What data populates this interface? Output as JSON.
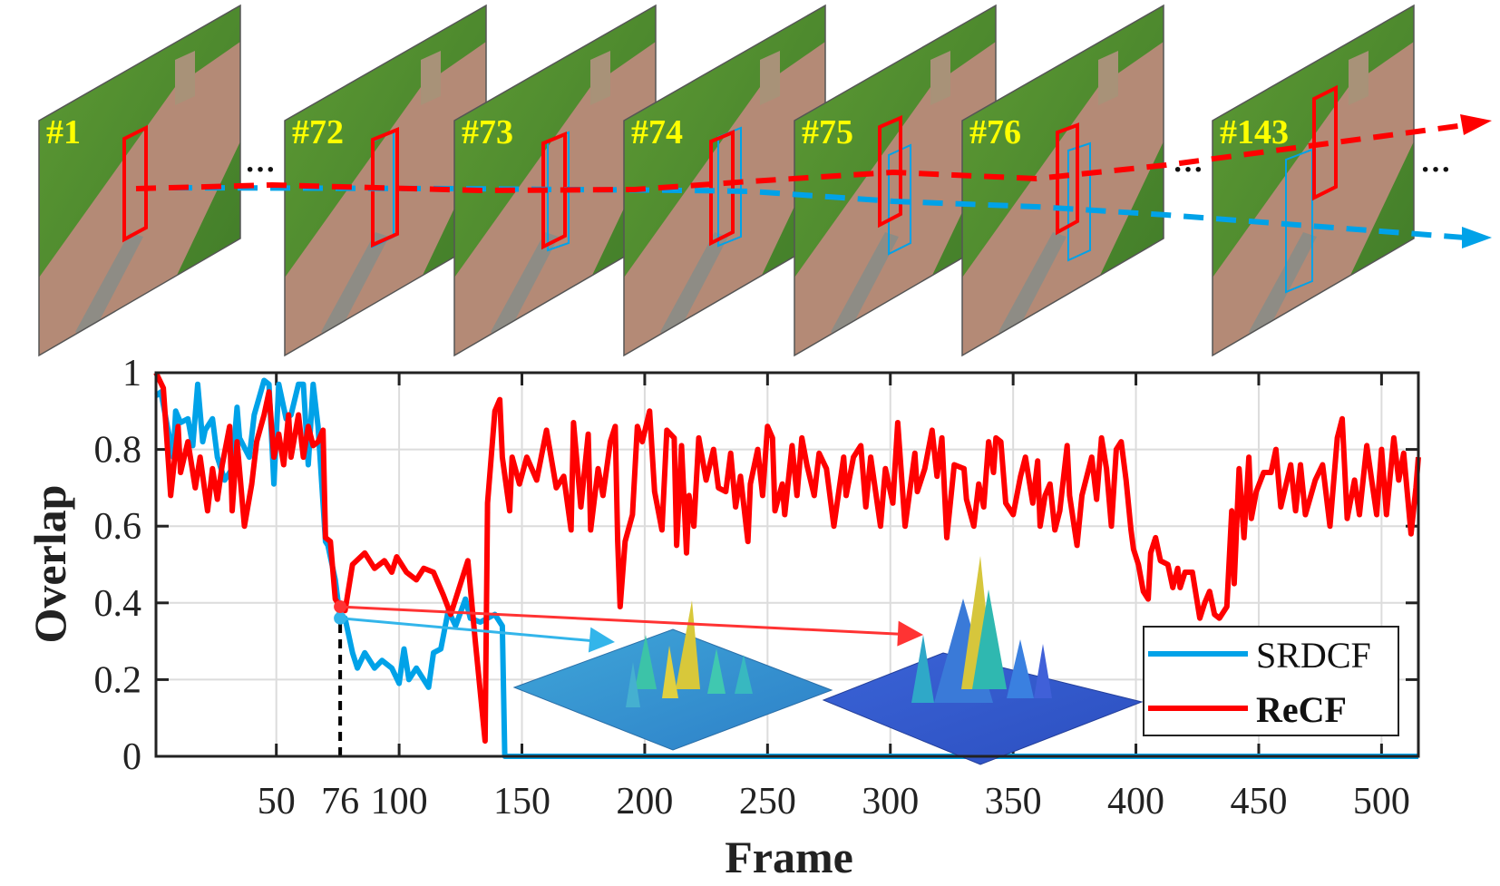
{
  "frames": [
    {
      "label": "#1"
    },
    {
      "label": "#72"
    },
    {
      "label": "#73"
    },
    {
      "label": "#74"
    },
    {
      "label": "#75"
    },
    {
      "label": "#76"
    },
    {
      "label": "#143"
    }
  ],
  "ellipsis": "···",
  "colors": {
    "srdcf": "#00a2e8",
    "recf": "#ff0000",
    "label": "#ffff00"
  },
  "chart_data": {
    "type": "line",
    "xlabel": "Frame",
    "ylabel": "Overlap",
    "xlim": [
      1,
      515
    ],
    "ylim": [
      0,
      1
    ],
    "xticks": [
      50,
      76,
      100,
      150,
      200,
      250,
      300,
      350,
      400,
      450,
      500
    ],
    "xtick_labels": [
      "50",
      "76",
      "100",
      "150",
      "200",
      "250",
      "300",
      "350",
      "400",
      "450",
      "500"
    ],
    "yticks": [
      0,
      0.2,
      0.4,
      0.6,
      0.8,
      1
    ],
    "ytick_labels": [
      "0",
      "0.2",
      "0.4",
      "0.6",
      "0.8",
      "1"
    ],
    "grid": true,
    "legend": "bottom-right",
    "highlight_frame": 76,
    "series": [
      {
        "name": "SRDCF",
        "color": "#00a2e8",
        "points": [
          [
            1,
            0.94
          ],
          [
            3,
            0.95
          ],
          [
            8,
            0.78
          ],
          [
            9,
            0.9
          ],
          [
            11,
            0.87
          ],
          [
            14,
            0.88
          ],
          [
            16,
            0.81
          ],
          [
            18,
            0.97
          ],
          [
            20,
            0.82
          ],
          [
            21,
            0.85
          ],
          [
            24,
            0.88
          ],
          [
            26,
            0.78
          ],
          [
            29,
            0.72
          ],
          [
            32,
            0.75
          ],
          [
            34,
            0.91
          ],
          [
            35,
            0.83
          ],
          [
            39,
            0.78
          ],
          [
            41,
            0.89
          ],
          [
            45,
            0.98
          ],
          [
            47,
            0.97
          ],
          [
            49,
            0.71
          ],
          [
            51,
            0.97
          ],
          [
            54,
            0.88
          ],
          [
            56,
            0.89
          ],
          [
            59,
            0.97
          ],
          [
            61,
            0.97
          ],
          [
            63,
            0.76
          ],
          [
            65,
            0.97
          ],
          [
            67,
            0.86
          ],
          [
            69,
            0.66
          ],
          [
            70,
            0.56
          ],
          [
            71,
            0.55
          ],
          [
            74,
            0.46
          ],
          [
            76,
            0.36
          ],
          [
            78,
            0.36
          ],
          [
            81,
            0.27
          ],
          [
            83,
            0.23
          ],
          [
            86,
            0.27
          ],
          [
            90,
            0.23
          ],
          [
            93,
            0.25
          ],
          [
            97,
            0.23
          ],
          [
            100,
            0.19
          ],
          [
            102,
            0.28
          ],
          [
            104,
            0.2
          ],
          [
            107,
            0.23
          ],
          [
            109,
            0.21
          ],
          [
            112,
            0.18
          ],
          [
            114,
            0.27
          ],
          [
            117,
            0.28
          ],
          [
            120,
            0.38
          ],
          [
            123,
            0.34
          ],
          [
            127,
            0.41
          ],
          [
            129,
            0.36
          ],
          [
            133,
            0.35
          ],
          [
            139,
            0.37
          ],
          [
            142,
            0.34
          ],
          [
            143,
            0
          ],
          [
            515,
            0
          ]
        ]
      },
      {
        "name": "ReCF",
        "color": "#ff0000",
        "points": [
          [
            1,
            1.0
          ],
          [
            4,
            0.96
          ],
          [
            7,
            0.68
          ],
          [
            10,
            0.86
          ],
          [
            11,
            0.74
          ],
          [
            14,
            0.82
          ],
          [
            17,
            0.7
          ],
          [
            19,
            0.78
          ],
          [
            22,
            0.64
          ],
          [
            24,
            0.75
          ],
          [
            26,
            0.67
          ],
          [
            28,
            0.76
          ],
          [
            31,
            0.86
          ],
          [
            32,
            0.64
          ],
          [
            34,
            0.82
          ],
          [
            37,
            0.6
          ],
          [
            40,
            0.71
          ],
          [
            42,
            0.82
          ],
          [
            45,
            0.89
          ],
          [
            47,
            0.95
          ],
          [
            49,
            0.78
          ],
          [
            51,
            0.84
          ],
          [
            53,
            0.76
          ],
          [
            55,
            0.89
          ],
          [
            56,
            0.78
          ],
          [
            59,
            0.89
          ],
          [
            61,
            0.78
          ],
          [
            63,
            0.86
          ],
          [
            65,
            0.81
          ],
          [
            67,
            0.82
          ],
          [
            69,
            0.85
          ],
          [
            70,
            0.57
          ],
          [
            72,
            0.56
          ],
          [
            74,
            0.41
          ],
          [
            76,
            0.39
          ],
          [
            78,
            0.38
          ],
          [
            81,
            0.5
          ],
          [
            86,
            0.53
          ],
          [
            90,
            0.49
          ],
          [
            94,
            0.51
          ],
          [
            97,
            0.48
          ],
          [
            99,
            0.52
          ],
          [
            103,
            0.48
          ],
          [
            107,
            0.46
          ],
          [
            110,
            0.49
          ],
          [
            114,
            0.48
          ],
          [
            118,
            0.42
          ],
          [
            121,
            0.37
          ],
          [
            125,
            0.45
          ],
          [
            128,
            0.51
          ],
          [
            131,
            0.3
          ],
          [
            135,
            0.04
          ],
          [
            136,
            0.66
          ],
          [
            139,
            0.9
          ],
          [
            141,
            0.93
          ],
          [
            142,
            0.78
          ],
          [
            145,
            0.64
          ],
          [
            146,
            0.78
          ],
          [
            149,
            0.71
          ],
          [
            152,
            0.78
          ],
          [
            156,
            0.72
          ],
          [
            160,
            0.85
          ],
          [
            164,
            0.7
          ],
          [
            167,
            0.73
          ],
          [
            170,
            0.59
          ],
          [
            171,
            0.87
          ],
          [
            174,
            0.65
          ],
          [
            177,
            0.84
          ],
          [
            178,
            0.59
          ],
          [
            181,
            0.75
          ],
          [
            183,
            0.68
          ],
          [
            186,
            0.82
          ],
          [
            188,
            0.86
          ],
          [
            189,
            0.56
          ],
          [
            190,
            0.39
          ],
          [
            192,
            0.56
          ],
          [
            195,
            0.63
          ],
          [
            197,
            0.86
          ],
          [
            199,
            0.82
          ],
          [
            202,
            0.9
          ],
          [
            204,
            0.69
          ],
          [
            207,
            0.59
          ],
          [
            209,
            0.85
          ],
          [
            212,
            0.83
          ],
          [
            213,
            0.55
          ],
          [
            215,
            0.81
          ],
          [
            217,
            0.53
          ],
          [
            218,
            0.68
          ],
          [
            220,
            0.6
          ],
          [
            222,
            0.83
          ],
          [
            225,
            0.72
          ],
          [
            228,
            0.8
          ],
          [
            230,
            0.7
          ],
          [
            233,
            0.69
          ],
          [
            235,
            0.79
          ],
          [
            237,
            0.65
          ],
          [
            239,
            0.73
          ],
          [
            242,
            0.56
          ],
          [
            243,
            0.71
          ],
          [
            246,
            0.8
          ],
          [
            248,
            0.68
          ],
          [
            250,
            0.86
          ],
          [
            252,
            0.83
          ],
          [
            253,
            0.64
          ],
          [
            256,
            0.71
          ],
          [
            257,
            0.63
          ],
          [
            260,
            0.81
          ],
          [
            262,
            0.68
          ],
          [
            264,
            0.83
          ],
          [
            266,
            0.76
          ],
          [
            269,
            0.68
          ],
          [
            271,
            0.79
          ],
          [
            274,
            0.75
          ],
          [
            277,
            0.6
          ],
          [
            281,
            0.78
          ],
          [
            282,
            0.68
          ],
          [
            285,
            0.78
          ],
          [
            288,
            0.81
          ],
          [
            290,
            0.65
          ],
          [
            292,
            0.78
          ],
          [
            296,
            0.6
          ],
          [
            298,
            0.75
          ],
          [
            301,
            0.66
          ],
          [
            303,
            0.87
          ],
          [
            306,
            0.6
          ],
          [
            310,
            0.79
          ],
          [
            311,
            0.69
          ],
          [
            314,
            0.75
          ],
          [
            317,
            0.85
          ],
          [
            319,
            0.73
          ],
          [
            321,
            0.83
          ],
          [
            323,
            0.57
          ],
          [
            326,
            0.76
          ],
          [
            330,
            0.75
          ],
          [
            331,
            0.67
          ],
          [
            334,
            0.6
          ],
          [
            336,
            0.71
          ],
          [
            338,
            0.65
          ],
          [
            340,
            0.82
          ],
          [
            342,
            0.74
          ],
          [
            343,
            0.83
          ],
          [
            345,
            0.82
          ],
          [
            347,
            0.66
          ],
          [
            350,
            0.63
          ],
          [
            353,
            0.73
          ],
          [
            355,
            0.78
          ],
          [
            358,
            0.66
          ],
          [
            360,
            0.77
          ],
          [
            361,
            0.6
          ],
          [
            363,
            0.68
          ],
          [
            365,
            0.71
          ],
          [
            367,
            0.59
          ],
          [
            369,
            0.64
          ],
          [
            372,
            0.81
          ],
          [
            373,
            0.68
          ],
          [
            376,
            0.55
          ],
          [
            378,
            0.68
          ],
          [
            382,
            0.78
          ],
          [
            384,
            0.67
          ],
          [
            386,
            0.83
          ],
          [
            388,
            0.75
          ],
          [
            390,
            0.6
          ],
          [
            392,
            0.8
          ],
          [
            394,
            0.82
          ],
          [
            396,
            0.72
          ],
          [
            398,
            0.59
          ],
          [
            399,
            0.54
          ],
          [
            401,
            0.5
          ],
          [
            403,
            0.43
          ],
          [
            405,
            0.41
          ],
          [
            406,
            0.53
          ],
          [
            408,
            0.57
          ],
          [
            410,
            0.51
          ],
          [
            413,
            0.5
          ],
          [
            415,
            0.44
          ],
          [
            417,
            0.49
          ],
          [
            418,
            0.44
          ],
          [
            420,
            0.48
          ],
          [
            423,
            0.48
          ],
          [
            426,
            0.36
          ],
          [
            428,
            0.4
          ],
          [
            430,
            0.43
          ],
          [
            432,
            0.37
          ],
          [
            434,
            0.36
          ],
          [
            437,
            0.39
          ],
          [
            439,
            0.64
          ],
          [
            440,
            0.45
          ],
          [
            442,
            0.75
          ],
          [
            444,
            0.57
          ],
          [
            446,
            0.78
          ],
          [
            447,
            0.62
          ],
          [
            449,
            0.69
          ],
          [
            452,
            0.74
          ],
          [
            455,
            0.74
          ],
          [
            457,
            0.8
          ],
          [
            459,
            0.65
          ],
          [
            463,
            0.76
          ],
          [
            465,
            0.64
          ],
          [
            467,
            0.76
          ],
          [
            469,
            0.63
          ],
          [
            473,
            0.72
          ],
          [
            476,
            0.76
          ],
          [
            479,
            0.6
          ],
          [
            482,
            0.83
          ],
          [
            484,
            0.88
          ],
          [
            486,
            0.62
          ],
          [
            489,
            0.72
          ],
          [
            491,
            0.63
          ],
          [
            494,
            0.81
          ],
          [
            496,
            0.72
          ],
          [
            498,
            0.63
          ],
          [
            500,
            0.8
          ],
          [
            502,
            0.63
          ],
          [
            505,
            0.83
          ],
          [
            507,
            0.72
          ],
          [
            509,
            0.79
          ],
          [
            512,
            0.58
          ],
          [
            514,
            0.7
          ],
          [
            515,
            0.78
          ]
        ]
      }
    ]
  }
}
